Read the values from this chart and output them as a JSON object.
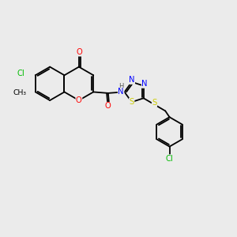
{
  "background_color": "#ebebeb",
  "bond_color": "#000000",
  "atom_colors": {
    "O": "#ff0000",
    "N": "#0000ff",
    "S": "#cccc00",
    "Cl": "#00bb00",
    "H": "#555555",
    "C": "#000000"
  },
  "figsize": [
    3.0,
    3.0
  ],
  "dpi": 100
}
